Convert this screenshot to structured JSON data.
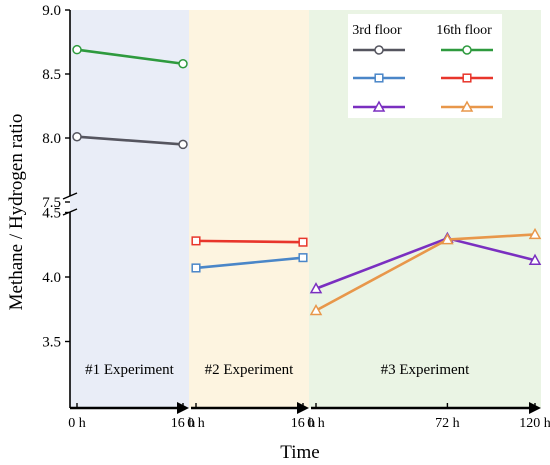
{
  "chart_data": {
    "type": "line",
    "xlabel": "Time",
    "ylabel": "Methane / Hydrogen ratio",
    "y_axis_break": true,
    "ylim_upper": [
      7.4,
      9.0
    ],
    "ylim_lower": [
      3.0,
      4.5
    ],
    "yticks_upper": [
      "7.5",
      "8.0",
      "8.5",
      "9.0"
    ],
    "yticks_lower": [
      "3.5",
      "4.0",
      "4.5"
    ],
    "colors": {
      "background_exp1": "#e9edf7",
      "background_exp2": "#fdf4e0",
      "background_exp3": "#eaf4e4",
      "grey": "#55555f",
      "green": "#2e9a3e",
      "blue": "#4a86c8",
      "red": "#e8352b",
      "purple": "#7a2fc0",
      "orange": "#e8974a"
    },
    "legend": {
      "headers": [
        "3rd floor",
        "16th floor"
      ],
      "placement": "top-right"
    },
    "panels": [
      {
        "label": "#1 Experiment",
        "ticks": [
          "0 h",
          "16 h"
        ],
        "x": [
          0,
          16
        ],
        "series": [
          {
            "floor": "3rd floor",
            "color": "grey",
            "marker": "circle",
            "values": [
              8.01,
              7.95
            ]
          },
          {
            "floor": "16th floor",
            "color": "green",
            "marker": "circle",
            "values": [
              8.69,
              8.58
            ]
          }
        ]
      },
      {
        "label": "#2 Experiment",
        "ticks": [
          "0 h",
          "16 h"
        ],
        "x": [
          0,
          16
        ],
        "series": [
          {
            "floor": "3rd floor",
            "color": "blue",
            "marker": "square",
            "values": [
              4.07,
              4.15
            ]
          },
          {
            "floor": "16th floor",
            "color": "red",
            "marker": "square",
            "values": [
              4.28,
              4.27
            ]
          }
        ]
      },
      {
        "label": "#3 Experiment",
        "ticks": [
          "0 h",
          "72 h",
          "120 h"
        ],
        "x": [
          0,
          72,
          120
        ],
        "series": [
          {
            "floor": "3rd floor",
            "color": "purple",
            "marker": "triangle",
            "values": [
              3.91,
              4.3,
              4.13
            ]
          },
          {
            "floor": "16th floor",
            "color": "orange",
            "marker": "triangle",
            "values": [
              3.74,
              4.29,
              4.33
            ]
          }
        ]
      }
    ]
  }
}
